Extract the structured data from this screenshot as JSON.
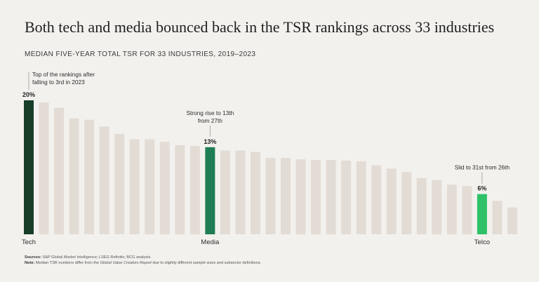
{
  "title": "Both tech and media bounced back in the TSR rankings across 33 industries",
  "subtitle": "MEDIAN FIVE-YEAR TOTAL TSR FOR 33 INDUSTRIES, 2019–2023",
  "colors": {
    "tech": "#173d29",
    "media": "#1e7d52",
    "telco": "#2ec168",
    "other": "#e3dcd5",
    "background": "#f2f1ee"
  },
  "chart_data": {
    "type": "bar",
    "ylim": [
      0,
      20
    ],
    "grid": false,
    "values": [
      20,
      19.7,
      18.9,
      17.3,
      17.1,
      16.1,
      15.0,
      14.2,
      14.2,
      13.8,
      13.3,
      13.2,
      13.0,
      12.5,
      12.5,
      12.3,
      11.4,
      11.4,
      11.2,
      11.1,
      11.1,
      11.0,
      10.9,
      10.3,
      9.8,
      9.3,
      8.4,
      8.1,
      7.4,
      7.2,
      6.0,
      5.0,
      4.0
    ],
    "categories": [
      "Tech",
      "",
      "",
      "",
      "",
      "",
      "",
      "",
      "",
      "",
      "",
      "",
      "Media",
      "",
      "",
      "",
      "",
      "",
      "",
      "",
      "",
      "",
      "",
      "",
      "",
      "",
      "",
      "",
      "",
      "",
      "Telco",
      "",
      ""
    ],
    "highlights": [
      {
        "index": 0,
        "label": "Tech",
        "value_label": "20%",
        "color_key": "tech",
        "annotation": [
          "Top of the rankings after",
          "falling to 3rd in 2023"
        ]
      },
      {
        "index": 12,
        "label": "Media",
        "value_label": "13%",
        "color_key": "media",
        "annotation": [
          "Strong rise to 13th",
          "from 27th"
        ]
      },
      {
        "index": 30,
        "label": "Telco",
        "value_label": "6%",
        "color_key": "telco",
        "annotation": [
          "Slid to 31st from 26th"
        ]
      }
    ]
  },
  "footer": {
    "sources_label": "Sources:",
    "sources_text": "S&P Global Market Intelligence; LSEG Refinitiv; BCG analysis.",
    "note_label": "Note:",
    "note_text_1": "Median TSR numbers differ from the",
    "note_italic": "Global Value Creators Report",
    "note_text_2": "due to slightly different sample sizes and subsector definitions."
  }
}
